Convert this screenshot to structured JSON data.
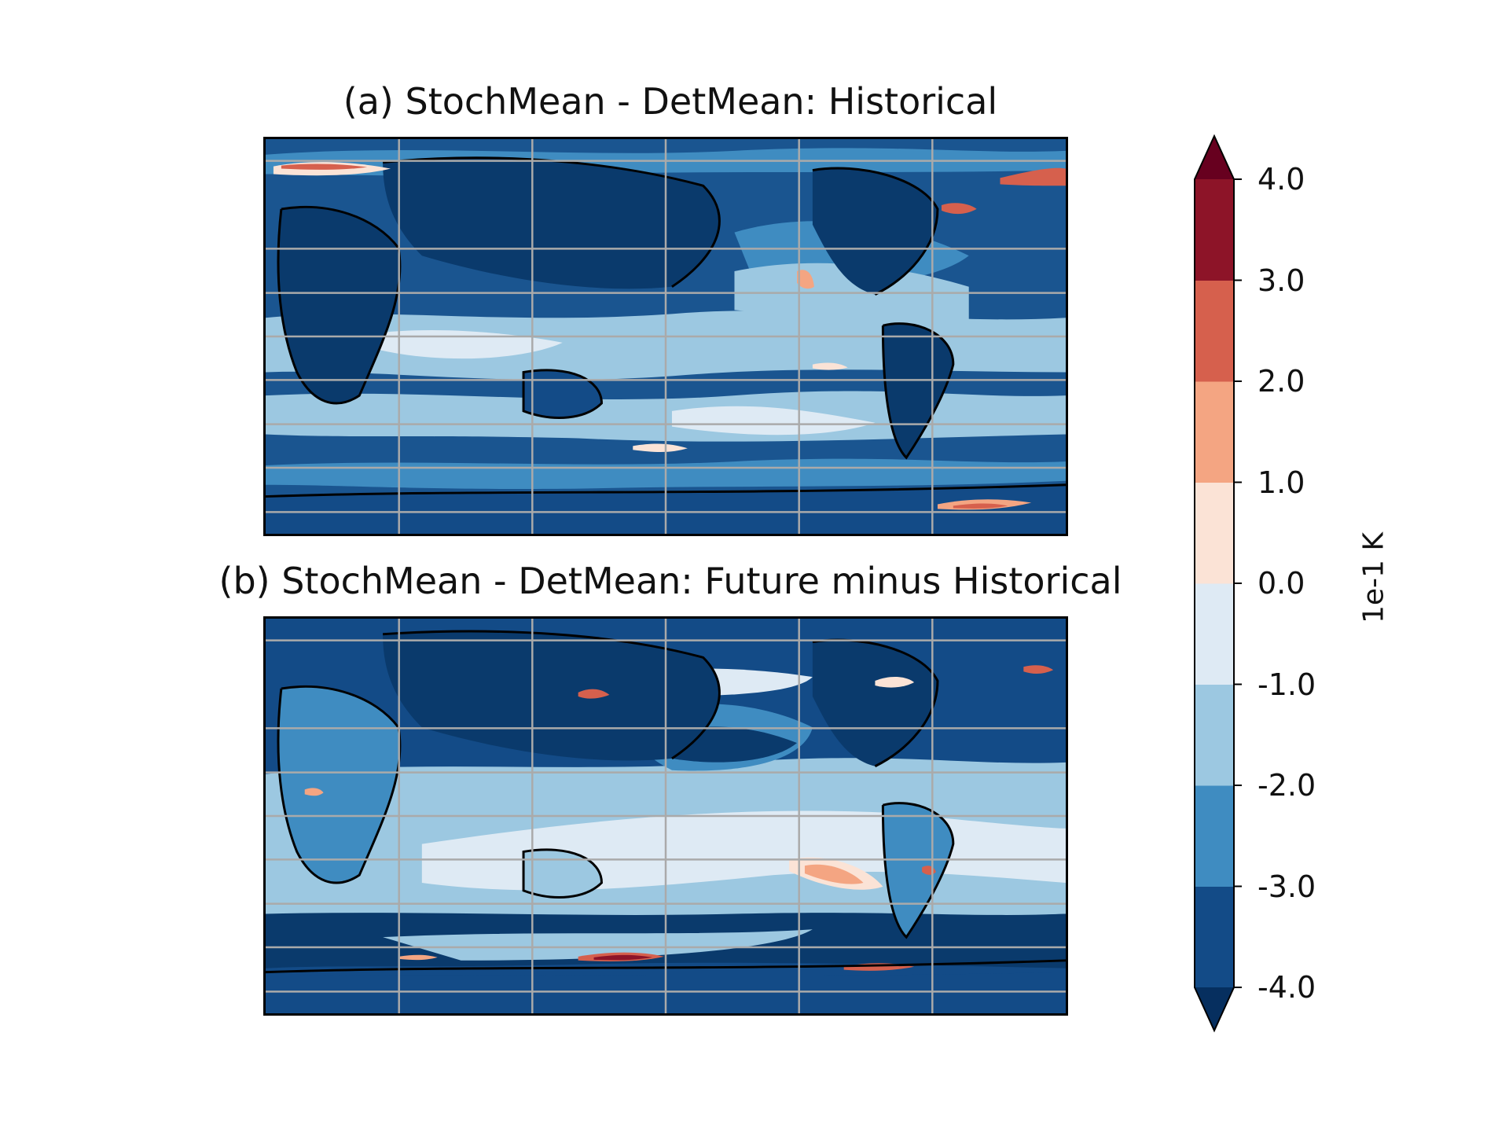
{
  "panels": [
    {
      "title": "(a) StochMean - DetMean: Historical"
    },
    {
      "title": "(b) StochMean - DetMean: Future minus Historical"
    }
  ],
  "colorbar": {
    "unit": "1e-1 K",
    "ticks": [
      "4.0",
      "3.0",
      "2.0",
      "1.0",
      "0.0",
      "-1.0",
      "-2.0",
      "-3.0",
      "-4.0"
    ],
    "levels": [
      -4.0,
      -3.0,
      -2.0,
      -1.0,
      0.0,
      1.0,
      2.0,
      3.0,
      4.0
    ],
    "colors_low_to_high": [
      "#134b87",
      "#3f8cc1",
      "#9cc8e1",
      "#deeaf4",
      "#fbe3d6",
      "#f4a582",
      "#d6604d",
      "#8d1428"
    ],
    "under_color": "#062f5f",
    "over_color": "#67001f",
    "extend": "both"
  },
  "map": {
    "projection": "PlateCarree",
    "gridlines": "on",
    "gridline_color": "#aaaaaa",
    "coastline_color": "#000000"
  }
}
